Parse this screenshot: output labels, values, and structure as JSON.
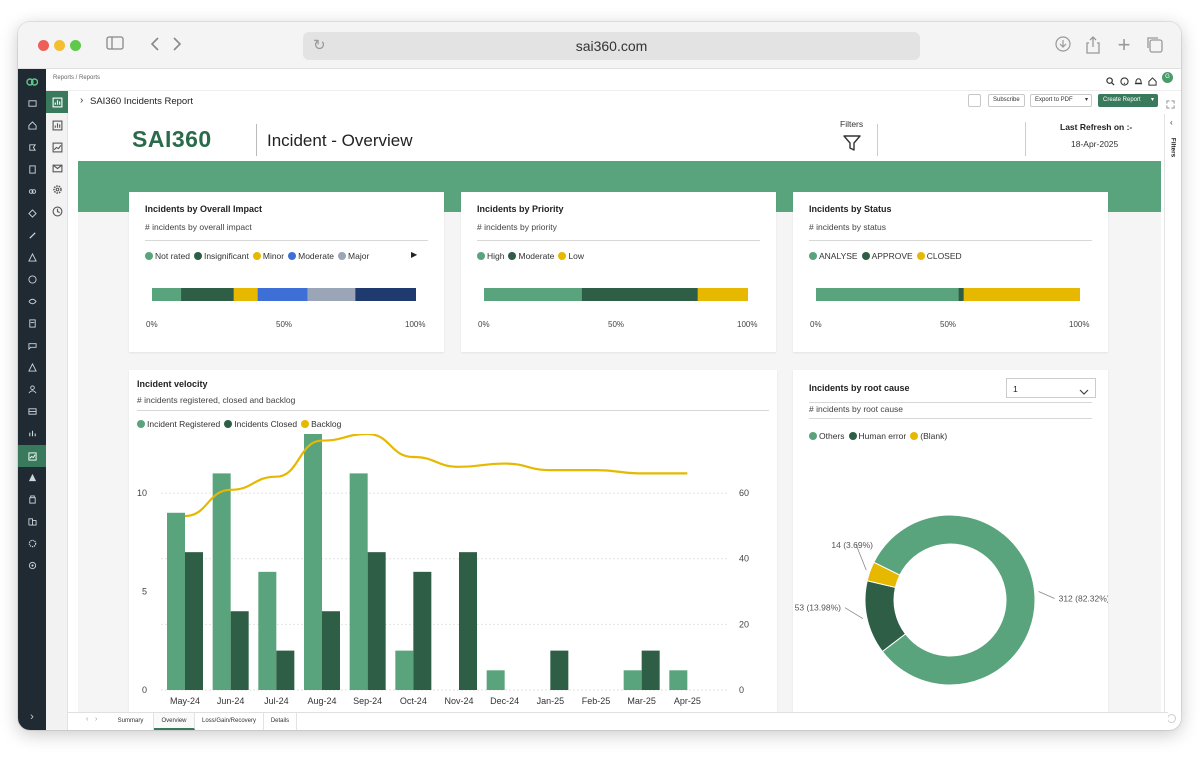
{
  "browser": {
    "url": "sai360.com",
    "colors": {
      "close": "#ee5f57",
      "minimize": "#f5bd31",
      "maximize": "#5fc94a"
    }
  },
  "app": {
    "breadcrumb": "Reports / Reports",
    "report_title": "SAI360 Incidents Report",
    "user_initials": "G",
    "buttons": {
      "subscribe": "Subscribe",
      "export": "Export to PDF",
      "create": "Create Report"
    }
  },
  "report": {
    "logo": "SAI360",
    "heading": "Incident - Overview",
    "filters_label": "Filters",
    "last_refresh_label": "Last Refresh on :-",
    "last_refresh_date": "18-Apr-2025",
    "filters_panel_label": "Filters"
  },
  "cards": {
    "impact": {
      "title": "Incidents by Overall Impact",
      "subtitle": "# incidents by overall impact",
      "legend": [
        {
          "name": "Not rated",
          "color": "#5aa47d"
        },
        {
          "name": "Insignificant",
          "color": "#2e5e45"
        },
        {
          "name": "Minor",
          "color": "#e6b800"
        },
        {
          "name": "Moderate",
          "color": "#3d6fd6"
        },
        {
          "name": "Major",
          "color": "#9aa5b8"
        }
      ],
      "ticks": [
        "0%",
        "50%",
        "100%"
      ]
    },
    "priority": {
      "title": "Incidents by Priority",
      "subtitle": "# incidents by priority",
      "legend": [
        {
          "name": "High",
          "color": "#5aa47d"
        },
        {
          "name": "Moderate",
          "color": "#2e5e45"
        },
        {
          "name": "Low",
          "color": "#e6b800"
        }
      ],
      "ticks": [
        "0%",
        "50%",
        "100%"
      ]
    },
    "status": {
      "title": "Incidents by Status",
      "subtitle": "# incidents by status",
      "legend": [
        {
          "name": "ANALYSE",
          "color": "#5aa47d"
        },
        {
          "name": "APPROVE",
          "color": "#2e5e45"
        },
        {
          "name": "CLOSED",
          "color": "#e6b800"
        }
      ],
      "ticks": [
        "0%",
        "50%",
        "100%"
      ]
    },
    "velocity": {
      "title": "Incident velocity",
      "subtitle": "# incidents registered, closed and backlog",
      "legend": [
        {
          "name": "Incident Registered",
          "color": "#5aa47d"
        },
        {
          "name": "Incidents Closed",
          "color": "#2e5e45"
        },
        {
          "name": "Backlog",
          "color": "#e6b800"
        }
      ]
    },
    "root": {
      "title": "Incidents by root cause",
      "subtitle": "# incidents by root cause",
      "dropdown_value": "1",
      "legend": [
        {
          "name": "Others",
          "color": "#5aa47d"
        },
        {
          "name": "Human error",
          "color": "#2e5e45"
        },
        {
          "name": "(Blank)",
          "color": "#e6b800"
        }
      ]
    }
  },
  "bottom_tabs": [
    "Summary",
    "Overview",
    "Loss/Gain/Recovery",
    "Details"
  ],
  "active_tab": "Overview",
  "chart_data": [
    {
      "type": "bar",
      "title": "Incidents by Overall Impact",
      "orientation": "horizontal-stacked-100",
      "series": [
        {
          "name": "Not rated",
          "values": [
            11
          ]
        },
        {
          "name": "Insignificant",
          "values": [
            20
          ]
        },
        {
          "name": "Minor",
          "values": [
            9
          ]
        },
        {
          "name": "Moderate",
          "values": [
            19
          ]
        },
        {
          "name": "Major",
          "values": [
            18
          ]
        },
        {
          "name": "",
          "values": [
            23
          ]
        }
      ],
      "xlim": [
        0,
        100
      ]
    },
    {
      "type": "bar",
      "title": "Incidents by Priority",
      "orientation": "horizontal-stacked-100",
      "series": [
        {
          "name": "High",
          "values": [
            37
          ]
        },
        {
          "name": "Moderate",
          "values": [
            44
          ]
        },
        {
          "name": "Low",
          "values": [
            19
          ]
        }
      ],
      "xlim": [
        0,
        100
      ]
    },
    {
      "type": "bar",
      "title": "Incidents by Status",
      "orientation": "horizontal-stacked-100",
      "series": [
        {
          "name": "ANALYSE",
          "values": [
            54
          ]
        },
        {
          "name": "APPROVE",
          "values": [
            2
          ]
        },
        {
          "name": "CLOSED",
          "values": [
            44
          ]
        }
      ],
      "xlim": [
        0,
        100
      ]
    },
    {
      "type": "bar",
      "title": "Incident velocity",
      "categories": [
        "May-24",
        "Jun-24",
        "Jul-24",
        "Aug-24",
        "Sep-24",
        "Oct-24",
        "Nov-24",
        "Dec-24",
        "Jan-25",
        "Feb-25",
        "Mar-25",
        "Apr-25"
      ],
      "series": [
        {
          "name": "Incident Registered",
          "values": [
            9,
            11,
            6,
            13,
            11,
            2,
            0,
            1,
            0,
            0,
            1,
            1
          ]
        },
        {
          "name": "Incidents Closed",
          "values": [
            7,
            4,
            2,
            4,
            7,
            6,
            7,
            0,
            2,
            0,
            2,
            0
          ]
        },
        {
          "name": "Backlog",
          "type": "line",
          "axis": "right",
          "values": [
            53,
            61,
            65,
            76,
            78,
            71,
            68,
            69,
            67,
            67,
            66,
            66
          ]
        }
      ],
      "ylim": [
        0,
        13
      ],
      "yticks": [
        0,
        5,
        10
      ],
      "y2lim": [
        0,
        78
      ],
      "y2ticks": [
        0,
        20,
        40,
        60
      ]
    },
    {
      "type": "pie",
      "title": "Incidents by root cause",
      "donut": true,
      "slices": [
        {
          "name": "Others",
          "value": 312,
          "label": "312 (82.32%)"
        },
        {
          "name": "Human error",
          "value": 53,
          "label": "53 (13.98%)"
        },
        {
          "name": "(Blank)",
          "value": 14,
          "label": "14 (3.69%)"
        }
      ]
    }
  ]
}
